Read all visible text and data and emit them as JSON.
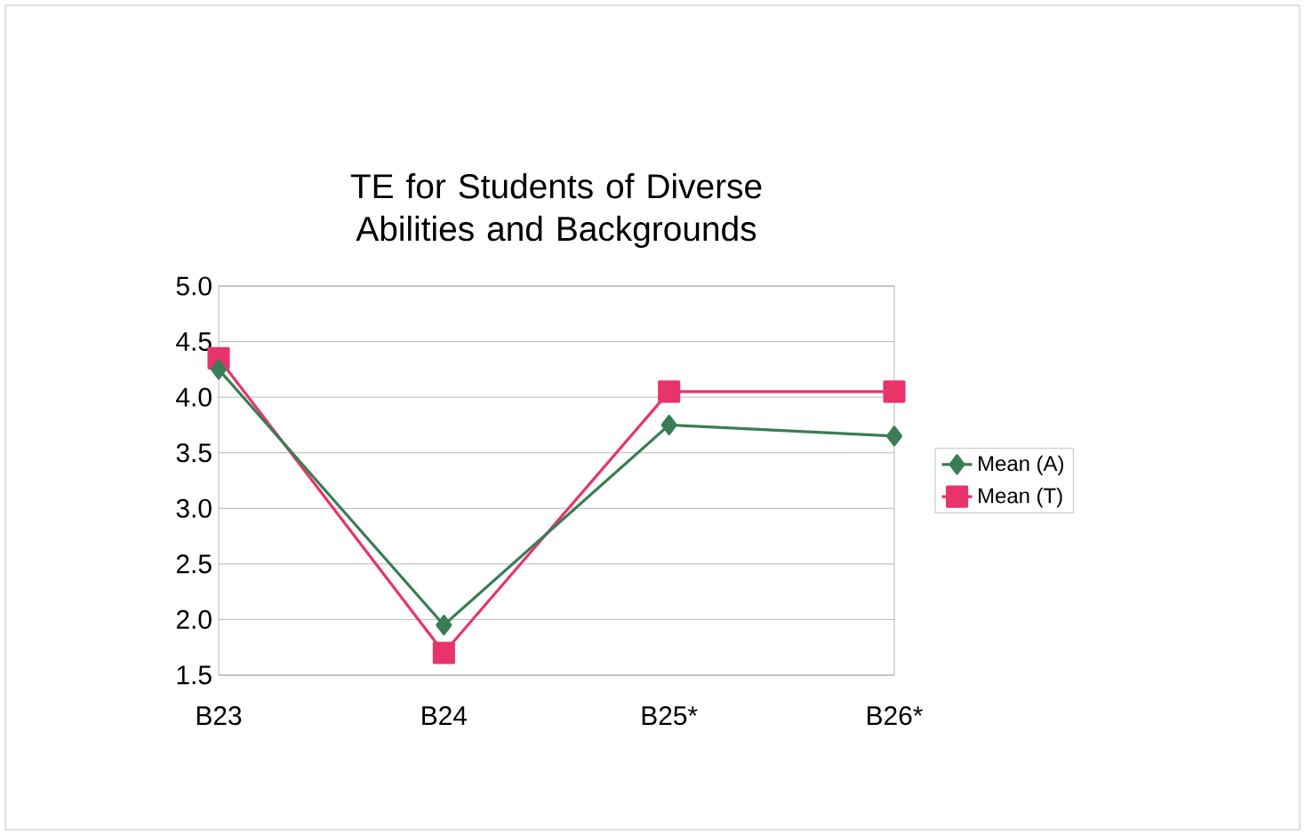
{
  "chart_data": {
    "type": "line",
    "title": "TE for Students of Diverse Abilities and Backgrounds",
    "categories": [
      "B23",
      "B24",
      "B25*",
      "B26*"
    ],
    "series": [
      {
        "name": "Mean (A)",
        "color": "#3a7d54",
        "marker": "diamond",
        "values": [
          4.25,
          1.95,
          3.75,
          3.65
        ]
      },
      {
        "name": "Mean (T)",
        "color": "#e8336b",
        "marker": "square",
        "values": [
          4.35,
          1.7,
          4.05,
          4.05
        ]
      }
    ],
    "ylim": [
      1.5,
      5.0
    ],
    "yticks": [
      {
        "value": 1.5,
        "label": "1.5"
      },
      {
        "value": 2.0,
        "label": "2.0"
      },
      {
        "value": 2.5,
        "label": "2.5"
      },
      {
        "value": 3.0,
        "label": "3.0"
      },
      {
        "value": 3.5,
        "label": "3.5"
      },
      {
        "value": 4.0,
        "label": "4.0"
      },
      {
        "value": 4.5,
        "label": "4.5"
      },
      {
        "value": 5.0,
        "label": "5.0"
      }
    ],
    "grid": "y",
    "legend": "right",
    "line_style": "solid"
  }
}
